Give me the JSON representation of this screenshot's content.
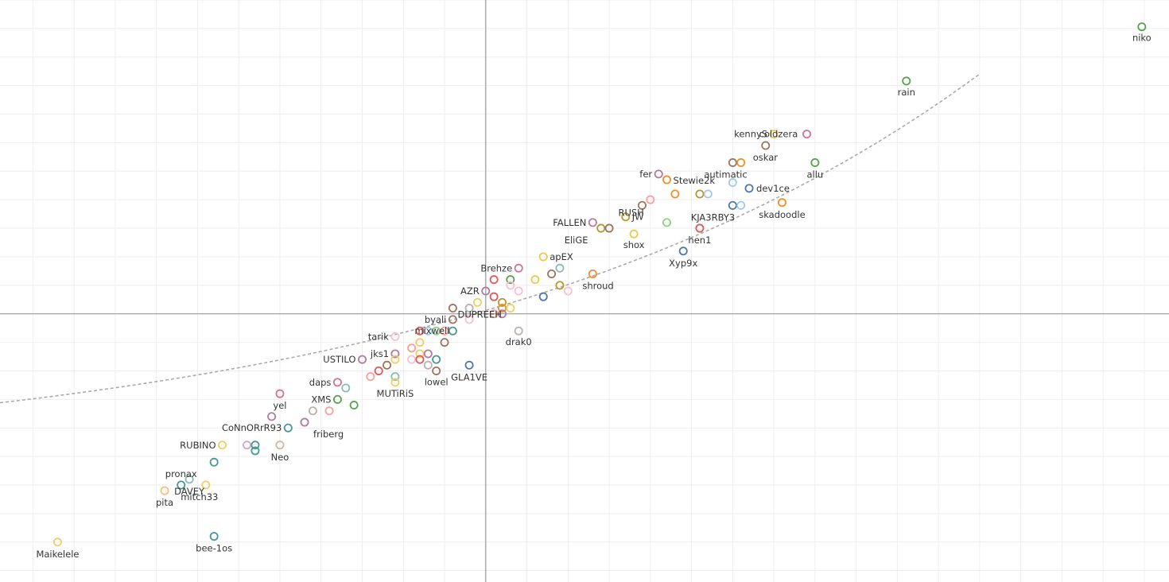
{
  "chart_data": {
    "type": "scatter",
    "title": "",
    "xlabel": "",
    "ylabel": "",
    "grid": true,
    "xlim": [
      -59,
      83
    ],
    "ylim": [
      -47,
      55
    ],
    "reference_lines": {
      "x": 0,
      "y": 0
    },
    "trendline": {
      "style": "dashed",
      "color": "#aaaaaa",
      "form": "exponential"
    },
    "points": [
      {
        "label": "niko",
        "x": 79.7,
        "y": 50.3,
        "color": "#59a14f"
      },
      {
        "label": "rain",
        "x": 51.1,
        "y": 40.8,
        "color": "#59a14f"
      },
      {
        "label": "kennyS",
        "x": 35,
        "y": 31.5,
        "color": "#edc948"
      },
      {
        "label": "",
        "x": 39,
        "y": 31.5,
        "color": "#d37295"
      },
      {
        "label": "coldzera",
        "x": null,
        "y": null,
        "color": ""
      },
      {
        "label": "",
        "x": 34,
        "y": 29.5,
        "color": "#9c755f"
      },
      {
        "label": "oskar",
        "x": null,
        "y": null,
        "color": ""
      },
      {
        "label": "",
        "x": 30,
        "y": 26.5,
        "color": "#9c755f"
      },
      {
        "label": "",
        "x": 31,
        "y": 26.5,
        "color": "#f28e2b"
      },
      {
        "label": "autimatic",
        "x": null,
        "y": null,
        "color": ""
      },
      {
        "label": "allu",
        "x": 40,
        "y": 26.5,
        "color": "#59a14f"
      },
      {
        "label": "fer",
        "x": 21,
        "y": 24.5,
        "color": "#b07aa1"
      },
      {
        "label": "Stewie2k",
        "x": 22,
        "y": 23.5,
        "color": "#f28e2b"
      },
      {
        "label": "",
        "x": 30,
        "y": 23,
        "color": "#a0cbe8"
      },
      {
        "label": "dev1ce",
        "x": 32,
        "y": 22,
        "color": "#4e79a7"
      },
      {
        "label": "",
        "x": 23,
        "y": 21,
        "color": "#f28e2b"
      },
      {
        "label": "",
        "x": 26,
        "y": 21,
        "color": "#b6992d"
      },
      {
        "label": "",
        "x": 27,
        "y": 21,
        "color": "#a0cbe8"
      },
      {
        "label": "",
        "x": 20,
        "y": 20,
        "color": "#ff9d9a"
      },
      {
        "label": "",
        "x": 19,
        "y": 19,
        "color": "#9c755f"
      },
      {
        "label": "RUSH",
        "x": null,
        "y": null,
        "color": ""
      },
      {
        "label": "",
        "x": 30,
        "y": 19,
        "color": "#4e79a7"
      },
      {
        "label": "",
        "x": 31,
        "y": 19,
        "color": "#a0cbe8"
      },
      {
        "label": "KJA3RBY3",
        "x": null,
        "y": null,
        "color": ""
      },
      {
        "label": "skadoodle",
        "x": 36,
        "y": 19.5,
        "color": "#f28e2b"
      },
      {
        "label": "JW",
        "x": 17,
        "y": 17,
        "color": "#b6992d"
      },
      {
        "label": "FALLEN",
        "x": 13,
        "y": 16,
        "color": "#b07aa1"
      },
      {
        "label": "",
        "x": 14,
        "y": 15,
        "color": "#b6992d"
      },
      {
        "label": "",
        "x": 15,
        "y": 15,
        "color": "#9c755f"
      },
      {
        "label": "EliGE",
        "x": null,
        "y": null,
        "color": ""
      },
      {
        "label": "",
        "x": 22,
        "y": 16,
        "color": "#8cd17d"
      },
      {
        "label": "shox",
        "x": 18,
        "y": 14,
        "color": "#edc948"
      },
      {
        "label": "hen1",
        "x": 26,
        "y": 15,
        "color": "#e15759"
      },
      {
        "label": "Xyp9x",
        "x": 24,
        "y": 11,
        "color": "#4e79a7"
      },
      {
        "label": "apEX",
        "x": 7,
        "y": 10,
        "color": "#edc948"
      },
      {
        "label": "",
        "x": 9,
        "y": 8,
        "color": "#86bcb6"
      },
      {
        "label": "Brehze",
        "x": 4,
        "y": 8,
        "color": "#d37295"
      },
      {
        "label": "",
        "x": 8,
        "y": 7,
        "color": "#9c755f"
      },
      {
        "label": "",
        "x": 1,
        "y": 6,
        "color": "#e15759"
      },
      {
        "label": "",
        "x": 3,
        "y": 6,
        "color": "#59a14f"
      },
      {
        "label": "",
        "x": 6,
        "y": 6,
        "color": "#edc948"
      },
      {
        "label": "",
        "x": 3,
        "y": 5,
        "color": "#fabfd2"
      },
      {
        "label": "",
        "x": 9,
        "y": 5,
        "color": "#b6992d"
      },
      {
        "label": "",
        "x": 13,
        "y": 7,
        "color": "#f28e2b"
      },
      {
        "label": "shroud",
        "x": null,
        "y": null,
        "color": ""
      },
      {
        "label": "",
        "x": 10,
        "y": 4,
        "color": "#fabfd2"
      },
      {
        "label": "AZR",
        "x": 0,
        "y": 4,
        "color": "#b07aa1"
      },
      {
        "label": "",
        "x": 4,
        "y": 4,
        "color": "#fabfd2"
      },
      {
        "label": "",
        "x": 7,
        "y": 3,
        "color": "#4e79a7"
      },
      {
        "label": "",
        "x": 1,
        "y": 3,
        "color": "#e15759"
      },
      {
        "label": "",
        "x": -1,
        "y": 2,
        "color": "#f1ce63"
      },
      {
        "label": "",
        "x": 2,
        "y": 2,
        "color": "#b6992d"
      },
      {
        "label": "",
        "x": -2,
        "y": 1,
        "color": "#bab0ac"
      },
      {
        "label": "",
        "x": -4,
        "y": 1,
        "color": "#9c755f"
      },
      {
        "label": "",
        "x": 2,
        "y": 1,
        "color": "#f28e2b"
      },
      {
        "label": "",
        "x": 3,
        "y": 1,
        "color": "#f1ce63"
      },
      {
        "label": "DUPREEH",
        "x": null,
        "y": null,
        "color": ""
      },
      {
        "label": "",
        "x": 1,
        "y": 0,
        "color": "#ff9d9a"
      },
      {
        "label": "",
        "x": 2,
        "y": 0,
        "color": "#b07aa1"
      },
      {
        "label": "byali",
        "x": -4,
        "y": -1,
        "color": "#9c755f"
      },
      {
        "label": "",
        "x": -2,
        "y": -1,
        "color": "#fabfd2"
      },
      {
        "label": "",
        "x": -8,
        "y": -3,
        "color": "#e15759"
      },
      {
        "label": "",
        "x": -7,
        "y": -3,
        "color": "#a0cbe8"
      },
      {
        "label": "",
        "x": -6,
        "y": -3,
        "color": "#8cd17d"
      },
      {
        "label": "",
        "x": -5,
        "y": -3,
        "color": "#ff9d9a"
      },
      {
        "label": "",
        "x": -4,
        "y": -3,
        "color": "#499894"
      },
      {
        "label": "mixwell",
        "x": null,
        "y": null,
        "color": ""
      },
      {
        "label": "drak0",
        "x": 4,
        "y": -3,
        "color": "#bab0ac"
      },
      {
        "label": "tarik",
        "x": -11,
        "y": -4,
        "color": "#fabfd2"
      },
      {
        "label": "",
        "x": -8,
        "y": -5,
        "color": "#f1ce63"
      },
      {
        "label": "",
        "x": -5,
        "y": -5,
        "color": "#9c755f"
      },
      {
        "label": "",
        "x": -9,
        "y": -6,
        "color": "#ff9d9a"
      },
      {
        "label": "",
        "x": -8,
        "y": -7,
        "color": "#f1ce63"
      },
      {
        "label": "",
        "x": -7,
        "y": -7,
        "color": "#b07aa1"
      },
      {
        "label": "",
        "x": -11,
        "y": -7,
        "color": "#b07aa1"
      },
      {
        "label": "jks1",
        "x": null,
        "y": null,
        "color": ""
      },
      {
        "label": "",
        "x": -9,
        "y": -8,
        "color": "#fabfd2"
      },
      {
        "label": "",
        "x": -8,
        "y": -8,
        "color": "#e15759"
      },
      {
        "label": "",
        "x": -11,
        "y": -8,
        "color": "#f1ce63"
      },
      {
        "label": "",
        "x": -6,
        "y": -8,
        "color": "#499894"
      },
      {
        "label": "USTILO",
        "x": -15,
        "y": -8,
        "color": "#b07aa1"
      },
      {
        "label": "",
        "x": -12,
        "y": -9,
        "color": "#9c755f"
      },
      {
        "label": "",
        "x": -7,
        "y": -9,
        "color": "#bab0ac"
      },
      {
        "label": "lowel",
        "x": -6,
        "y": -10,
        "color": "#9c755f"
      },
      {
        "label": "GLA1VE",
        "x": -2,
        "y": -9,
        "color": "#4e79a7"
      },
      {
        "label": "",
        "x": -13,
        "y": -10,
        "color": "#e15759"
      },
      {
        "label": "",
        "x": -14,
        "y": -11,
        "color": "#ff9d9a"
      },
      {
        "label": "",
        "x": -11,
        "y": -11,
        "color": "#86bcb6"
      },
      {
        "label": "MUTiRiS",
        "x": -11,
        "y": -12,
        "color": "#f1ce63"
      },
      {
        "label": "daps",
        "x": -18,
        "y": -12,
        "color": "#d37295"
      },
      {
        "label": "",
        "x": -17,
        "y": -13,
        "color": "#86bcb6"
      },
      {
        "label": "yel",
        "x": -25,
        "y": -14,
        "color": "#d37295"
      },
      {
        "label": "XMS",
        "x": -18,
        "y": -15,
        "color": "#59a14f"
      },
      {
        "label": "",
        "x": -16,
        "y": -16,
        "color": "#59a14f"
      },
      {
        "label": "",
        "x": -21,
        "y": -17,
        "color": "#bab0ac"
      },
      {
        "label": "",
        "x": -19,
        "y": -17,
        "color": "#ff9d9a"
      },
      {
        "label": "",
        "x": -26,
        "y": -18,
        "color": "#b07aa1"
      },
      {
        "label": "friberg",
        "x": -22,
        "y": -19,
        "color": "#b07aa1"
      },
      {
        "label": "CoNnORrR93",
        "x": -24,
        "y": -20,
        "color": "#499894"
      },
      {
        "label": "RUBINO",
        "x": -32,
        "y": -23,
        "color": "#f1ce63"
      },
      {
        "label": "",
        "x": -29,
        "y": -23,
        "color": "#d4a6c8"
      },
      {
        "label": "",
        "x": -28,
        "y": -23,
        "color": "#499894"
      },
      {
        "label": "",
        "x": -28,
        "y": -24,
        "color": "#499894"
      },
      {
        "label": "Neo",
        "x": -25,
        "y": -23,
        "color": "#d7b5a6"
      },
      {
        "label": "",
        "x": -33,
        "y": -26,
        "color": "#499894"
      },
      {
        "label": "DAVEY",
        "x": -36,
        "y": -29,
        "color": "#86bcb6"
      },
      {
        "label": "pronax",
        "x": -37,
        "y": -30,
        "color": "#499894"
      },
      {
        "label": "mitch33",
        "x": -34,
        "y": -30,
        "color": "#f1ce63"
      },
      {
        "label": "pita",
        "x": -39,
        "y": -31,
        "color": "#ffbe7d"
      },
      {
        "label": "bee-1os",
        "x": -33,
        "y": -39,
        "color": "#499894"
      },
      {
        "label": "Maikelele",
        "x": -52,
        "y": -40,
        "color": "#f1ce63"
      }
    ]
  }
}
